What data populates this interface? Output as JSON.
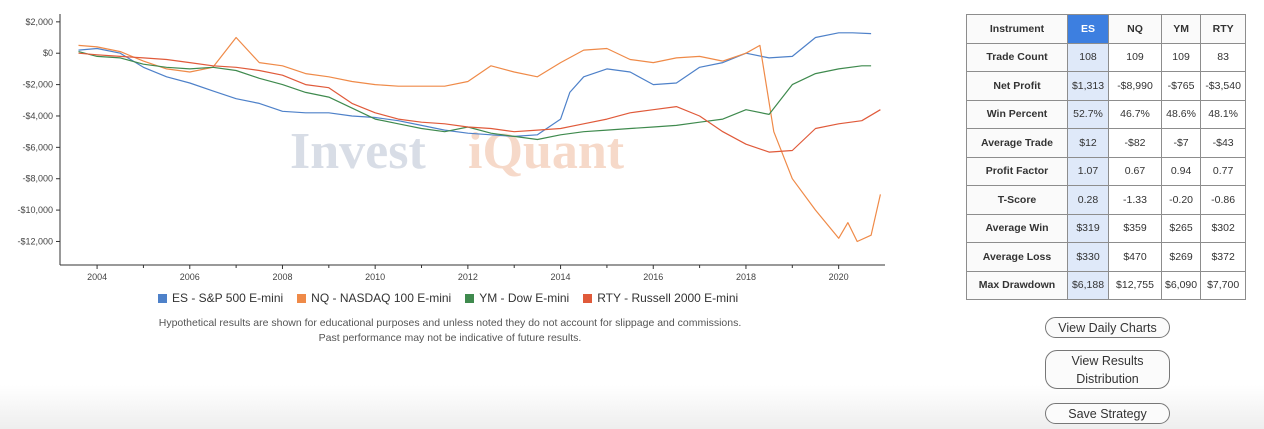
{
  "chart_data": {
    "type": "line",
    "title": "",
    "xlabel": "",
    "ylabel": "",
    "xlim": [
      2003.2,
      2021.0
    ],
    "ylim": [
      -13500,
      2500
    ],
    "x_ticks": [
      2004,
      2006,
      2008,
      2010,
      2012,
      2014,
      2016,
      2018,
      2020
    ],
    "x_tick_labels": [
      "2004",
      "2006",
      "2008",
      "2010",
      "2012",
      "2014",
      "2016",
      "2018",
      "2020"
    ],
    "y_ticks": [
      2000,
      0,
      -2000,
      -4000,
      -6000,
      -8000,
      -10000,
      -12000
    ],
    "y_tick_labels": [
      "$2,000",
      "$0",
      "-$2,000",
      "-$4,000",
      "-$6,000",
      "-$8,000",
      "-$10,000",
      "-$12,000"
    ],
    "grid": false,
    "legend_placement": "bottom",
    "watermark": [
      "Invest",
      "iQuant"
    ],
    "series": [
      {
        "name": "ES - S&P 500 E-mini",
        "color": "#4e81c9",
        "x": [
          2003.6,
          2004.0,
          2004.5,
          2005.0,
          2005.5,
          2006.0,
          2006.5,
          2007.0,
          2007.5,
          2008.0,
          2008.5,
          2009.0,
          2009.5,
          2010.0,
          2010.5,
          2011.0,
          2011.5,
          2012.0,
          2012.5,
          2013.0,
          2013.5,
          2014.0,
          2014.2,
          2014.5,
          2015.0,
          2015.5,
          2016.0,
          2016.5,
          2017.0,
          2017.5,
          2018.0,
          2018.5,
          2019.0,
          2019.5,
          2020.0,
          2020.3,
          2020.7
        ],
        "y": [
          200,
          300,
          0,
          -900,
          -1500,
          -1900,
          -2400,
          -2900,
          -3200,
          -3700,
          -3800,
          -3800,
          -4000,
          -4100,
          -4300,
          -4600,
          -4900,
          -5100,
          -5200,
          -5300,
          -5200,
          -4200,
          -2500,
          -1500,
          -1000,
          -1200,
          -2000,
          -1900,
          -900,
          -600,
          0,
          -300,
          -200,
          1000,
          1300,
          1300,
          1250
        ]
      },
      {
        "name": "NQ - NASDAQ 100 E-mini",
        "color": "#ef8a48",
        "x": [
          2003.6,
          2004.0,
          2004.5,
          2005.0,
          2005.5,
          2006.0,
          2006.5,
          2007.0,
          2007.5,
          2008.0,
          2008.5,
          2009.0,
          2009.5,
          2010.0,
          2010.5,
          2011.0,
          2011.5,
          2012.0,
          2012.5,
          2013.0,
          2013.5,
          2014.0,
          2014.5,
          2015.0,
          2015.5,
          2016.0,
          2016.5,
          2017.0,
          2017.5,
          2018.0,
          2018.3,
          2018.6,
          2019.0,
          2019.5,
          2020.0,
          2020.2,
          2020.4,
          2020.7,
          2020.9
        ],
        "y": [
          500,
          400,
          100,
          -500,
          -1000,
          -1200,
          -900,
          1000,
          -600,
          -800,
          -1300,
          -1500,
          -1800,
          -2000,
          -2100,
          -2100,
          -2100,
          -1800,
          -800,
          -1200,
          -1500,
          -600,
          200,
          300,
          -400,
          -600,
          -300,
          -200,
          -500,
          0,
          500,
          -5000,
          -8000,
          -10000,
          -11800,
          -10800,
          -12000,
          -11600,
          -9000
        ]
      },
      {
        "name": "YM - Dow E-mini",
        "color": "#3f8a4e",
        "x": [
          2003.6,
          2004.0,
          2004.5,
          2005.0,
          2005.5,
          2006.0,
          2006.5,
          2007.0,
          2007.5,
          2008.0,
          2008.5,
          2009.0,
          2009.5,
          2010.0,
          2010.5,
          2011.0,
          2011.5,
          2012.0,
          2012.5,
          2013.0,
          2013.5,
          2014.0,
          2014.5,
          2015.0,
          2015.5,
          2016.0,
          2016.5,
          2017.0,
          2017.5,
          2018.0,
          2018.5,
          2019.0,
          2019.5,
          2020.0,
          2020.5,
          2020.7
        ],
        "y": [
          100,
          -200,
          -300,
          -700,
          -900,
          -1000,
          -900,
          -1100,
          -1600,
          -2000,
          -2500,
          -2800,
          -3500,
          -4200,
          -4500,
          -4800,
          -5000,
          -4700,
          -5100,
          -5300,
          -5500,
          -5200,
          -5000,
          -4900,
          -4800,
          -4700,
          -4600,
          -4400,
          -4200,
          -3600,
          -3900,
          -2000,
          -1300,
          -1000,
          -800,
          -800
        ]
      },
      {
        "name": "RTY - Russell 2000 E-mini",
        "color": "#e05a3a",
        "x": [
          2003.6,
          2004.0,
          2004.5,
          2005.0,
          2005.5,
          2006.0,
          2006.5,
          2007.0,
          2007.5,
          2008.0,
          2008.5,
          2009.0,
          2009.5,
          2010.0,
          2010.5,
          2011.0,
          2011.5,
          2012.0,
          2012.5,
          2013.0,
          2013.5,
          2014.0,
          2014.5,
          2015.0,
          2015.5,
          2016.0,
          2016.5,
          2017.0,
          2017.5,
          2018.0,
          2018.5,
          2019.0,
          2019.5,
          2020.0,
          2020.5,
          2020.9
        ],
        "y": [
          0,
          -100,
          -200,
          -300,
          -400,
          -600,
          -800,
          -900,
          -1100,
          -1400,
          -2000,
          -2200,
          -3200,
          -3800,
          -4200,
          -4400,
          -4500,
          -4700,
          -4800,
          -5000,
          -4900,
          -4800,
          -4500,
          -4200,
          -3800,
          -3600,
          -3400,
          -4000,
          -5000,
          -5800,
          -6300,
          -6200,
          -4800,
          -4500,
          -4300,
          -3600
        ]
      }
    ]
  },
  "disclaimer": {
    "line1": "Hypothetical results are shown for educational purposes and unless noted they do not account for slippage and commissions.",
    "line2": "Past performance may not be indicative of future results."
  },
  "stats": {
    "header": [
      "Instrument",
      "ES",
      "NQ",
      "YM",
      "RTY"
    ],
    "rows": [
      {
        "label": "Trade Count",
        "values": [
          "108",
          "109",
          "109",
          "83"
        ]
      },
      {
        "label": "Net Profit",
        "values": [
          "$1,313",
          "-$8,990",
          "-$765",
          "-$3,540"
        ]
      },
      {
        "label": "Win Percent",
        "values": [
          "52.7%",
          "46.7%",
          "48.6%",
          "48.1%"
        ]
      },
      {
        "label": "Average Trade",
        "values": [
          "$12",
          "-$82",
          "-$7",
          "-$43"
        ]
      },
      {
        "label": "Profit Factor",
        "values": [
          "1.07",
          "0.67",
          "0.94",
          "0.77"
        ]
      },
      {
        "label": "T-Score",
        "values": [
          "0.28",
          "-1.33",
          "-0.20",
          "-0.86"
        ]
      },
      {
        "label": "Average Win",
        "values": [
          "$319",
          "$359",
          "$265",
          "$302"
        ]
      },
      {
        "label": "Average Loss",
        "values": [
          "$330",
          "$470",
          "$269",
          "$372"
        ]
      },
      {
        "label": "Max Drawdown",
        "values": [
          "$6,188",
          "$12,755",
          "$6,090",
          "$7,700"
        ]
      }
    ]
  },
  "buttons": {
    "daily_charts": "View Daily Charts",
    "results_distribution_line1": "View Results",
    "results_distribution_line2": "Distribution",
    "save_strategy": "Save Strategy"
  }
}
